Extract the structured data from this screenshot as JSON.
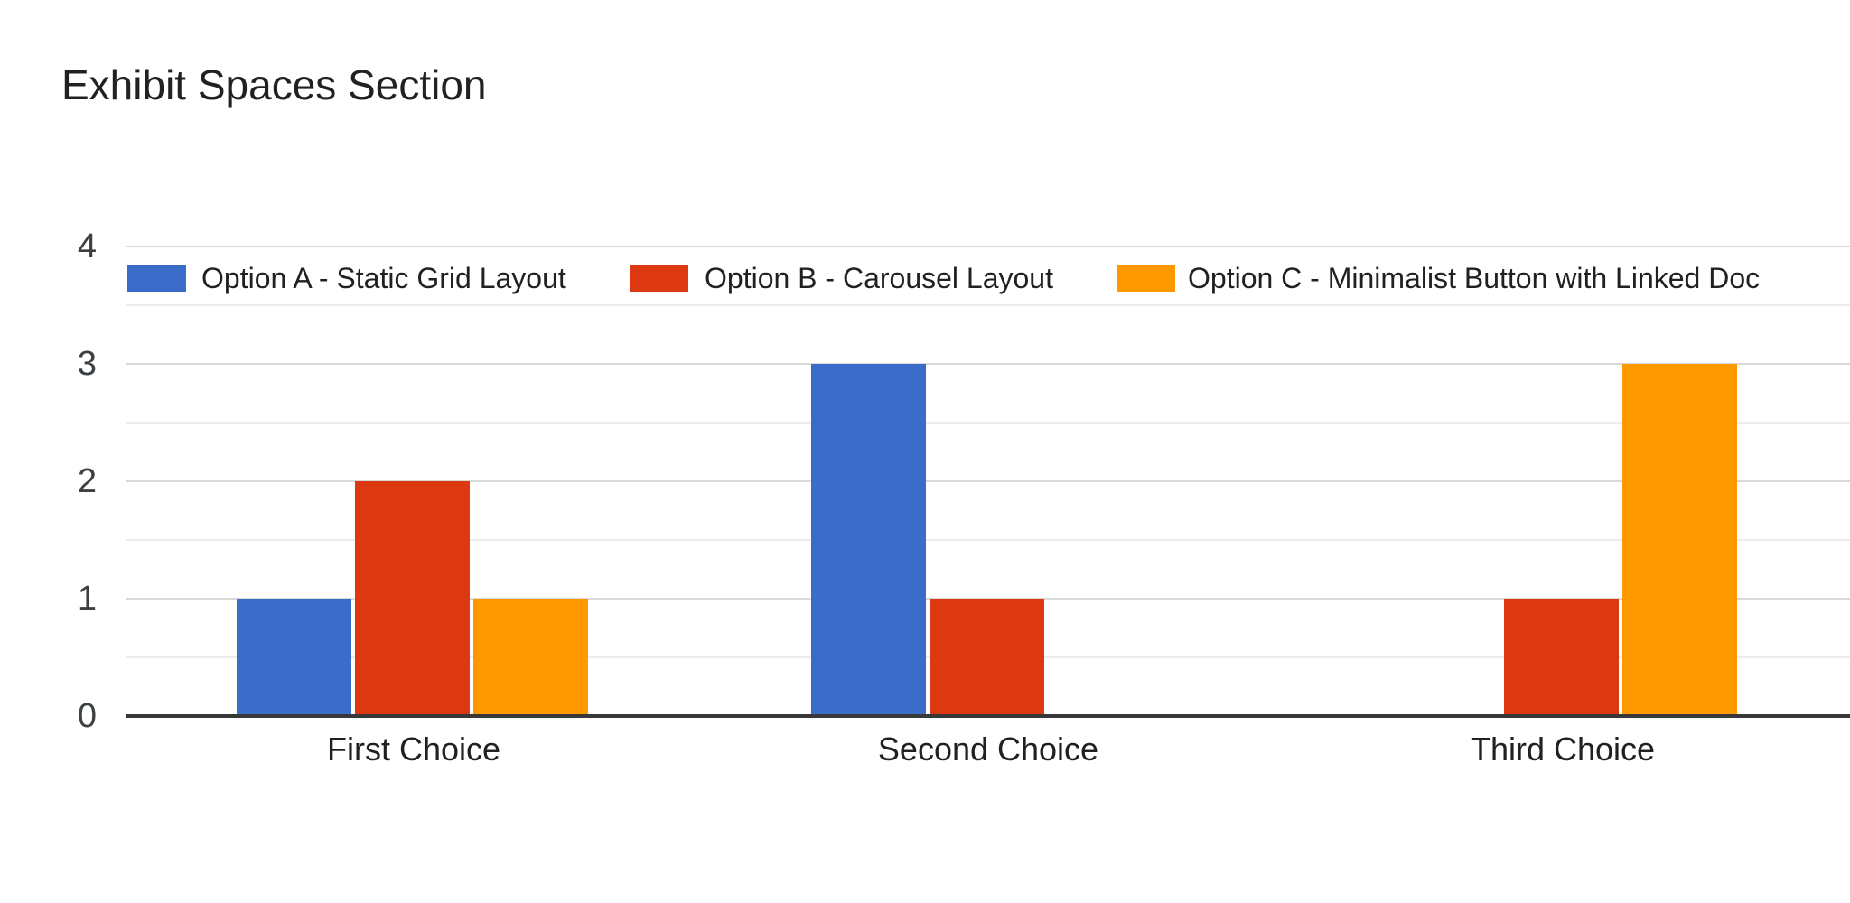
{
  "page": {
    "background": "#ffffff"
  },
  "chart_data": {
    "type": "bar",
    "title": "Exhibit Spaces Section",
    "categories": [
      "First Choice",
      "Second Choice",
      "Third Choice"
    ],
    "series": [
      {
        "name": "Option A - Static Grid Layout",
        "color": "#3b6cc9",
        "values": [
          1,
          3,
          0
        ]
      },
      {
        "name": "Option B - Carousel Layout",
        "color": "#dc3912",
        "values": [
          2,
          1,
          1
        ]
      },
      {
        "name": "Option C - Minimalist Button with Linked Doc",
        "color": "#ff9900",
        "values": [
          1,
          0,
          3
        ]
      }
    ],
    "xlabel": "",
    "ylabel": "",
    "yticks": [
      0,
      1,
      2,
      3,
      4
    ],
    "ylim": [
      0,
      4
    ],
    "grid": true,
    "legend_position": "top-inside",
    "axis_color": "#383838",
    "major_grid_color": "#d9d9d9",
    "minor_grid_color": "#ececec",
    "text_color": "#212121",
    "tick_label_color": "#3c4043"
  }
}
